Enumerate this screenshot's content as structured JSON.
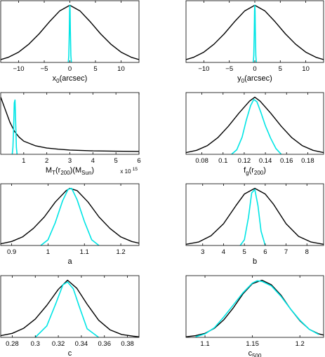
{
  "colors": {
    "prior": "#000000",
    "posterior": "#00e5e5"
  },
  "chart_data": [
    {
      "type": "line",
      "id": "x0",
      "xlabel": {
        "main": "x",
        "sub": "0",
        "rest": "(arcsec)"
      },
      "xlim": [
        -13.5,
        13.5
      ],
      "ylim": [
        0,
        1.08
      ],
      "xticks": [
        -10,
        -5,
        0,
        5,
        10
      ],
      "xtick_labels": [
        "−10",
        "−5",
        "0",
        "5",
        "10"
      ],
      "multiplier": "",
      "series": [
        {
          "role": "prior",
          "x": [
            -13.5,
            -12,
            -10,
            -8,
            -6,
            -4,
            -2,
            0,
            2,
            4,
            6,
            8,
            10,
            12,
            13.5
          ],
          "y": [
            0.05,
            0.09,
            0.18,
            0.32,
            0.5,
            0.71,
            0.9,
            1.0,
            0.9,
            0.71,
            0.5,
            0.32,
            0.18,
            0.09,
            0.05
          ]
        },
        {
          "role": "posterior",
          "x": [
            -0.3,
            -0.2,
            -0.1,
            -0.05,
            0,
            0.05,
            0.1,
            0.2,
            0.3
          ],
          "y": [
            0,
            0.12,
            0.55,
            0.9,
            1.0,
            0.9,
            0.55,
            0.12,
            0
          ]
        }
      ]
    },
    {
      "type": "line",
      "id": "y0",
      "xlabel": {
        "main": "y",
        "sub": "0",
        "rest": "(arcsec)"
      },
      "xlim": [
        -13.5,
        13.5
      ],
      "ylim": [
        0,
        1.08
      ],
      "xticks": [
        -10,
        -5,
        0,
        5,
        10
      ],
      "xtick_labels": [
        "−10",
        "−5",
        "0",
        "5",
        "10"
      ],
      "multiplier": "",
      "series": [
        {
          "role": "prior",
          "x": [
            -13.5,
            -12,
            -10,
            -8,
            -6,
            -4,
            -2,
            0,
            2,
            4,
            6,
            8,
            10,
            12,
            13.5
          ],
          "y": [
            0.05,
            0.09,
            0.18,
            0.32,
            0.5,
            0.71,
            0.9,
            1.0,
            0.9,
            0.71,
            0.5,
            0.32,
            0.18,
            0.09,
            0.05
          ]
        },
        {
          "role": "posterior",
          "x": [
            -0.3,
            -0.2,
            -0.1,
            -0.05,
            0,
            0.05,
            0.1,
            0.2,
            0.3
          ],
          "y": [
            0,
            0.12,
            0.55,
            0.9,
            1.0,
            0.9,
            0.55,
            0.12,
            0
          ]
        }
      ]
    },
    {
      "type": "line",
      "id": "MT",
      "xlabel": {
        "main": "M",
        "sub": "T",
        "rest": "(r",
        "sub2": "200",
        "rest2": ")(M",
        "sub3": "Sun",
        "rest3": ")"
      },
      "xlim": [
        0,
        6
      ],
      "ylim": [
        0,
        1.08
      ],
      "xticks": [
        1,
        2,
        3,
        4,
        5,
        6
      ],
      "xtick_labels": [
        "1",
        "2",
        "3",
        "4",
        "5",
        "6"
      ],
      "multiplier": "x 10",
      "multiplier_exp": "15",
      "series": [
        {
          "role": "prior",
          "x": [
            0,
            0.2,
            0.4,
            0.6,
            0.8,
            1,
            1.5,
            2,
            2.5,
            3,
            4,
            5,
            6
          ],
          "y": [
            1.0,
            0.78,
            0.56,
            0.4,
            0.3,
            0.23,
            0.15,
            0.11,
            0.09,
            0.075,
            0.06,
            0.055,
            0.05
          ]
        },
        {
          "role": "posterior",
          "x": [
            0.5,
            0.53,
            0.56,
            0.59,
            0.62,
            0.65,
            0.68,
            0.71
          ],
          "y": [
            0,
            0.12,
            0.45,
            0.9,
            0.95,
            0.55,
            0.12,
            0
          ]
        }
      ]
    },
    {
      "type": "line",
      "id": "fg",
      "xlabel": {
        "main": "f",
        "sub": "g",
        "rest": "(r",
        "sub2": "200",
        "rest2": ")"
      },
      "xlim": [
        0.065,
        0.195
      ],
      "ylim": [
        0,
        1.08
      ],
      "xticks": [
        0.08,
        0.1,
        0.12,
        0.14,
        0.16,
        0.18
      ],
      "xtick_labels": [
        "0.08",
        "0.1",
        "0.12",
        "0.14",
        "0.16",
        "0.18"
      ],
      "multiplier": "",
      "series": [
        {
          "role": "prior",
          "x": [
            0.065,
            0.075,
            0.085,
            0.095,
            0.105,
            0.115,
            0.125,
            0.13,
            0.135,
            0.145,
            0.155,
            0.165,
            0.175,
            0.185,
            0.195
          ],
          "y": [
            0.03,
            0.07,
            0.15,
            0.29,
            0.49,
            0.72,
            0.93,
            1.0,
            0.93,
            0.72,
            0.49,
            0.29,
            0.15,
            0.07,
            0.03
          ]
        },
        {
          "role": "posterior",
          "x": [
            0.108,
            0.113,
            0.118,
            0.122,
            0.126,
            0.129,
            0.132,
            0.136,
            0.14,
            0.145,
            0.15,
            0.155
          ],
          "y": [
            0,
            0.08,
            0.3,
            0.6,
            0.85,
            0.96,
            0.92,
            0.72,
            0.5,
            0.28,
            0.1,
            0
          ]
        }
      ]
    },
    {
      "type": "line",
      "id": "a",
      "xlabel": {
        "main": "a"
      },
      "xlim": [
        0.87,
        1.25
      ],
      "ylim": [
        0,
        1.08
      ],
      "xticks": [
        0.9,
        1,
        1.1,
        1.2
      ],
      "xtick_labels": [
        "0.9",
        "1",
        "1.1",
        "1.2"
      ],
      "multiplier": "",
      "series": [
        {
          "role": "prior",
          "x": [
            0.87,
            0.9,
            0.93,
            0.96,
            0.99,
            1.02,
            1.05,
            1.06,
            1.08,
            1.11,
            1.14,
            1.17,
            1.2,
            1.23,
            1.25
          ],
          "y": [
            0.03,
            0.07,
            0.15,
            0.3,
            0.5,
            0.76,
            0.96,
            1.0,
            0.96,
            0.76,
            0.5,
            0.3,
            0.15,
            0.07,
            0.04
          ]
        },
        {
          "role": "posterior",
          "x": [
            0.98,
            1.0,
            1.02,
            1.04,
            1.055,
            1.065,
            1.08,
            1.1,
            1.12,
            1.14
          ],
          "y": [
            0,
            0.1,
            0.4,
            0.78,
            0.98,
            1.0,
            0.8,
            0.42,
            0.1,
            0
          ]
        }
      ]
    },
    {
      "type": "line",
      "id": "b",
      "xlabel": {
        "main": "b"
      },
      "xlim": [
        2.2,
        8.8
      ],
      "ylim": [
        0,
        1.08
      ],
      "xticks": [
        3,
        4,
        5,
        6,
        7,
        8
      ],
      "xtick_labels": [
        "3",
        "4",
        "5",
        "6",
        "7",
        "8"
      ],
      "multiplier": "",
      "series": [
        {
          "role": "prior",
          "x": [
            2.2,
            2.8,
            3.4,
            4.0,
            4.6,
            5.0,
            5.5,
            6.0,
            6.4,
            7.0,
            7.6,
            8.2,
            8.8
          ],
          "y": [
            0.02,
            0.06,
            0.17,
            0.38,
            0.7,
            0.9,
            1.0,
            0.9,
            0.72,
            0.38,
            0.16,
            0.06,
            0.02
          ]
        },
        {
          "role": "posterior",
          "x": [
            4.8,
            5.0,
            5.2,
            5.35,
            5.5,
            5.65,
            5.8,
            6.0
          ],
          "y": [
            0,
            0.1,
            0.5,
            0.92,
            0.98,
            0.7,
            0.25,
            0
          ]
        }
      ]
    },
    {
      "type": "line",
      "id": "c",
      "xlabel": {
        "main": "c"
      },
      "xlim": [
        0.27,
        0.39
      ],
      "ylim": [
        0,
        1.08
      ],
      "xticks": [
        0.28,
        0.3,
        0.32,
        0.34,
        0.36,
        0.38
      ],
      "xtick_labels": [
        "0.28",
        "0.3",
        "0.32",
        "0.34",
        "0.36",
        "0.38"
      ],
      "multiplier": "",
      "series": [
        {
          "role": "prior",
          "x": [
            0.27,
            0.28,
            0.29,
            0.3,
            0.31,
            0.32,
            0.328,
            0.336,
            0.345,
            0.355,
            0.365,
            0.375,
            0.385,
            0.39
          ],
          "y": [
            0.03,
            0.07,
            0.16,
            0.32,
            0.56,
            0.84,
            1.0,
            0.86,
            0.58,
            0.3,
            0.13,
            0.05,
            0.02,
            0.01
          ]
        },
        {
          "role": "posterior",
          "x": [
            0.3,
            0.31,
            0.318,
            0.324,
            0.328,
            0.333,
            0.338,
            0.345,
            0.355
          ],
          "y": [
            0,
            0.2,
            0.6,
            0.92,
            0.97,
            0.85,
            0.55,
            0.15,
            0
          ]
        }
      ]
    },
    {
      "type": "line",
      "id": "c500",
      "xlabel": {
        "main": "c",
        "sub": "500"
      },
      "xlim": [
        1.08,
        1.225
      ],
      "ylim": [
        0,
        1.08
      ],
      "xticks": [
        1.1,
        1.15,
        1.2
      ],
      "xtick_labels": [
        "1.1",
        "1.15",
        "1.2"
      ],
      "multiplier": "",
      "series": [
        {
          "role": "prior",
          "x": [
            1.08,
            1.09,
            1.1,
            1.11,
            1.12,
            1.13,
            1.14,
            1.15,
            1.16,
            1.17,
            1.18,
            1.19,
            1.2,
            1.21,
            1.22,
            1.225
          ],
          "y": [
            0.01,
            0.03,
            0.07,
            0.16,
            0.31,
            0.52,
            0.76,
            0.94,
            1.0,
            0.92,
            0.74,
            0.5,
            0.29,
            0.14,
            0.06,
            0.04
          ]
        },
        {
          "role": "posterior",
          "x": [
            1.09,
            1.1,
            1.11,
            1.12,
            1.13,
            1.14,
            1.15,
            1.155,
            1.16,
            1.17,
            1.18,
            1.19,
            1.2,
            1.21,
            1.22
          ],
          "y": [
            0.01,
            0.06,
            0.17,
            0.36,
            0.57,
            0.78,
            0.95,
            0.99,
            0.98,
            0.9,
            0.72,
            0.5,
            0.3,
            0.14,
            0.05
          ]
        }
      ]
    }
  ]
}
